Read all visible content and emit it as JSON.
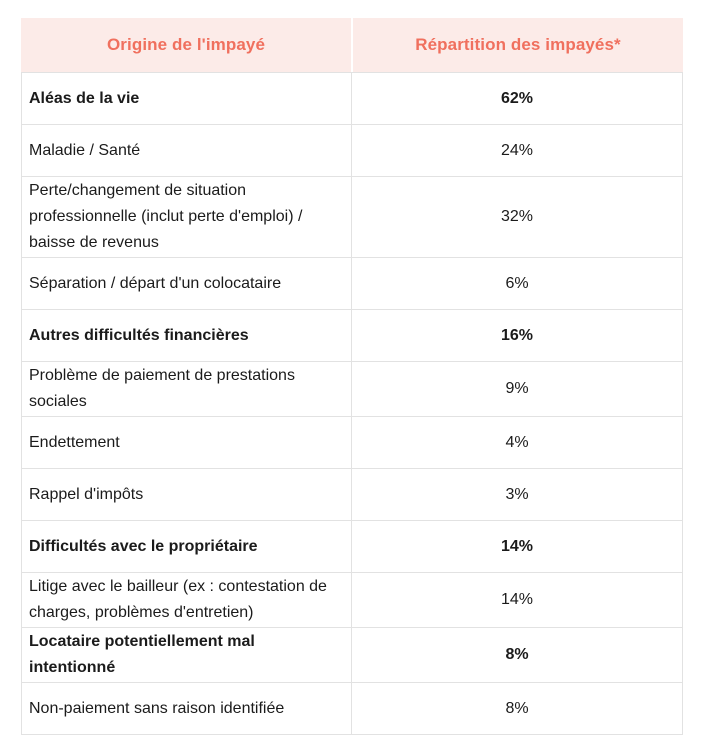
{
  "chart_data": {
    "type": "table",
    "columns": [
      {
        "label": "Origine de l'impayé"
      },
      {
        "label": "Répartition des impayés*"
      }
    ],
    "rows": [
      {
        "label": "Aléas de la vie",
        "value": "62%",
        "bold": true
      },
      {
        "label": "Maladie / Santé",
        "value": "24%",
        "bold": false
      },
      {
        "label": "Perte/changement de situation professionnelle (inclut perte d'emploi) / baisse de revenus",
        "value": "32%",
        "bold": false
      },
      {
        "label": "Séparation / départ d'un colocataire",
        "value": "6%",
        "bold": false
      },
      {
        "label": "Autres difficultés financières",
        "value": "16%",
        "bold": true
      },
      {
        "label": "Problème de paiement de prestations sociales",
        "value": "9%",
        "bold": false
      },
      {
        "label": "Endettement",
        "value": "4%",
        "bold": false
      },
      {
        "label": "Rappel d'impôts",
        "value": "3%",
        "bold": false
      },
      {
        "label": "Difficultés avec le propriétaire",
        "value": "14%",
        "bold": true
      },
      {
        "label": "Litige avec le bailleur (ex : contestation de charges, problèmes d'entretien)",
        "value": "14%",
        "bold": false
      },
      {
        "label": "Locataire potentiellement mal intentionné",
        "value": "8%",
        "bold": true
      },
      {
        "label": "Non-paiement sans raison identifiée",
        "value": "8%",
        "bold": false
      }
    ]
  },
  "colors": {
    "header_bg": "#fcebe8",
    "header_text": "#f0705e",
    "border": "#e2e2e2",
    "body_text": "#1b1b1b",
    "page_bg": "#ffffff"
  }
}
